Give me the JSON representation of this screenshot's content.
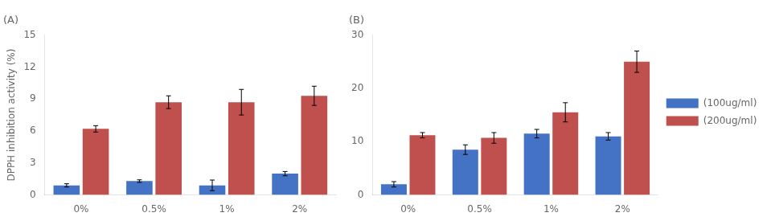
{
  "chart_data": [
    {
      "type": "bar",
      "title": "(A)",
      "categories": [
        "0%",
        "0.5%",
        "1%",
        "2%"
      ],
      "series": [
        {
          "name": "(100ug/ml)",
          "color": "#4472C4",
          "values": [
            0.9,
            1.3,
            0.9,
            2.0
          ],
          "errors": [
            0.15,
            0.12,
            0.5,
            0.2
          ]
        },
        {
          "name": "(200ug/ml)",
          "color": "#C0504D",
          "values": [
            6.2,
            8.7,
            8.7,
            9.3
          ],
          "errors": [
            0.3,
            0.6,
            1.2,
            0.9
          ]
        }
      ],
      "ylabel": "DPPH inhibition activity (%)",
      "ylim": [
        0,
        15
      ],
      "yticks": [
        0,
        3,
        6,
        9,
        12,
        15
      ],
      "grid": false
    },
    {
      "type": "bar",
      "title": "(B)",
      "categories": [
        "0%",
        "0.5%",
        "1%",
        "2%"
      ],
      "series": [
        {
          "name": "(100ug/ml)",
          "color": "#4472C4",
          "values": [
            2.0,
            8.5,
            11.5,
            11.0
          ],
          "errors": [
            0.5,
            0.9,
            0.8,
            0.7
          ]
        },
        {
          "name": "(200ug/ml)",
          "color": "#C0504D",
          "values": [
            11.2,
            10.7,
            15.5,
            25.0
          ],
          "errors": [
            0.5,
            1.0,
            1.8,
            2.0
          ]
        }
      ],
      "ylim": [
        0,
        30
      ],
      "yticks": [
        0,
        10,
        20,
        30
      ],
      "grid": false,
      "legend": "right"
    }
  ]
}
